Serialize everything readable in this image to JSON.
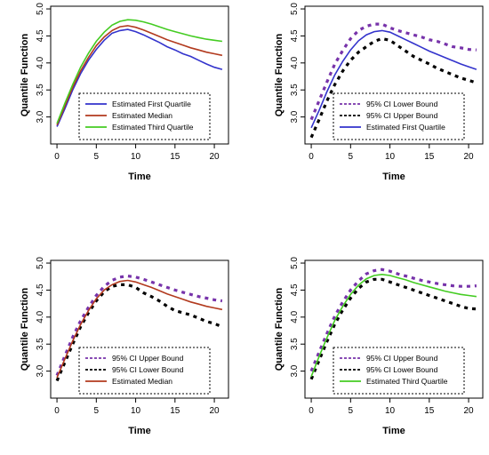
{
  "chart_data": [
    {
      "type": "line",
      "xlabel": "Time",
      "ylabel": "Quantile Function",
      "xlim": [
        -0.8,
        21.8
      ],
      "ylim": [
        2.5,
        5.05
      ],
      "x_ticks": [
        0,
        5,
        10,
        15,
        20
      ],
      "y_ticks": [
        3.0,
        3.5,
        4.0,
        4.5,
        5.0
      ],
      "legend_position": "bottom-right",
      "x": [
        0,
        1,
        2,
        3,
        4,
        5,
        6,
        7,
        8,
        9,
        10,
        11,
        12,
        13,
        14,
        15,
        16,
        17,
        18,
        19,
        20,
        21
      ],
      "series": [
        {
          "name": "Estimated First Quartile",
          "color": "#3333cc",
          "dash": "solid",
          "values": [
            2.82,
            3.15,
            3.5,
            3.8,
            4.05,
            4.25,
            4.42,
            4.55,
            4.6,
            4.62,
            4.58,
            4.52,
            4.45,
            4.38,
            4.3,
            4.24,
            4.17,
            4.12,
            4.05,
            3.98,
            3.92,
            3.88
          ]
        },
        {
          "name": "Estimated Median",
          "color": "#b23a1e",
          "dash": "solid",
          "values": [
            2.85,
            3.2,
            3.55,
            3.85,
            4.1,
            4.32,
            4.48,
            4.6,
            4.67,
            4.69,
            4.66,
            4.61,
            4.55,
            4.49,
            4.43,
            4.38,
            4.33,
            4.28,
            4.24,
            4.2,
            4.17,
            4.14
          ]
        },
        {
          "name": "Estimated Third Quartile",
          "color": "#44cc22",
          "dash": "solid",
          "values": [
            2.88,
            3.25,
            3.6,
            3.92,
            4.18,
            4.4,
            4.57,
            4.7,
            4.77,
            4.8,
            4.79,
            4.76,
            4.72,
            4.67,
            4.62,
            4.58,
            4.54,
            4.5,
            4.47,
            4.44,
            4.42,
            4.4
          ]
        }
      ]
    },
    {
      "type": "line",
      "xlabel": "Time",
      "ylabel": "Quantile Function",
      "xlim": [
        -0.8,
        21.8
      ],
      "ylim": [
        2.5,
        5.05
      ],
      "x_ticks": [
        0,
        5,
        10,
        15,
        20
      ],
      "y_ticks": [
        3.0,
        3.5,
        4.0,
        4.5,
        5.0
      ],
      "legend_position": "bottom-right",
      "x": [
        0,
        1,
        2,
        3,
        4,
        5,
        6,
        7,
        8,
        9,
        10,
        11,
        12,
        13,
        14,
        15,
        16,
        17,
        18,
        19,
        20,
        21
      ],
      "series": [
        {
          "name": "95% CI Lower Bound",
          "color": "#7733aa",
          "dash": "thick-dotted",
          "values": [
            2.95,
            3.3,
            3.65,
            3.98,
            4.23,
            4.45,
            4.6,
            4.68,
            4.72,
            4.72,
            4.65,
            4.6,
            4.56,
            4.52,
            4.48,
            4.43,
            4.4,
            4.35,
            4.3,
            4.28,
            4.25,
            4.24
          ]
        },
        {
          "name": "95% CI Upper Bound",
          "color": "#000000",
          "dash": "thick-dotted",
          "values": [
            2.62,
            2.95,
            3.3,
            3.6,
            3.85,
            4.05,
            4.2,
            4.3,
            4.4,
            4.45,
            4.42,
            4.32,
            4.22,
            4.12,
            4.05,
            3.98,
            3.9,
            3.84,
            3.78,
            3.72,
            3.68,
            3.63
          ]
        },
        {
          "name": "Estimated First Quartile",
          "color": "#3333cc",
          "dash": "solid",
          "values": [
            2.8,
            3.12,
            3.47,
            3.78,
            4.03,
            4.24,
            4.41,
            4.52,
            4.58,
            4.6,
            4.57,
            4.5,
            4.43,
            4.36,
            4.29,
            4.22,
            4.16,
            4.1,
            4.04,
            3.98,
            3.93,
            3.88
          ]
        }
      ]
    },
    {
      "type": "line",
      "xlabel": "Time",
      "ylabel": "Quantile Function",
      "xlim": [
        -0.8,
        21.8
      ],
      "ylim": [
        2.5,
        5.05
      ],
      "x_ticks": [
        0,
        5,
        10,
        15,
        20
      ],
      "y_ticks": [
        3.0,
        3.5,
        4.0,
        4.5,
        5.0
      ],
      "legend_position": "bottom-right",
      "x": [
        0,
        1,
        2,
        3,
        4,
        5,
        6,
        7,
        8,
        9,
        10,
        11,
        12,
        13,
        14,
        15,
        16,
        17,
        18,
        19,
        20,
        21
      ],
      "series": [
        {
          "name": "95% CI Upper Bound",
          "color": "#7733aa",
          "dash": "thick-dotted",
          "values": [
            2.92,
            3.28,
            3.63,
            3.93,
            4.18,
            4.4,
            4.57,
            4.68,
            4.74,
            4.76,
            4.74,
            4.7,
            4.65,
            4.6,
            4.55,
            4.5,
            4.46,
            4.42,
            4.38,
            4.35,
            4.32,
            4.3
          ]
        },
        {
          "name": "95% CI Lower Bound",
          "color": "#000000",
          "dash": "thick-dotted",
          "values": [
            2.82,
            3.16,
            3.5,
            3.82,
            4.08,
            4.3,
            4.47,
            4.57,
            4.6,
            4.6,
            4.55,
            4.45,
            4.38,
            4.3,
            4.2,
            4.12,
            4.08,
            4.04,
            3.98,
            3.92,
            3.88,
            3.82
          ]
        },
        {
          "name": "Estimated Median",
          "color": "#b23a1e",
          "dash": "solid",
          "values": [
            2.88,
            3.22,
            3.56,
            3.86,
            4.12,
            4.34,
            4.5,
            4.6,
            4.66,
            4.68,
            4.65,
            4.6,
            4.55,
            4.49,
            4.43,
            4.38,
            4.33,
            4.28,
            4.24,
            4.2,
            4.17,
            4.14
          ]
        }
      ]
    },
    {
      "type": "line",
      "xlabel": "Time",
      "ylabel": "Quantile Function",
      "xlim": [
        -0.8,
        21.8
      ],
      "ylim": [
        2.5,
        5.05
      ],
      "x_ticks": [
        0,
        5,
        10,
        15,
        20
      ],
      "y_ticks": [
        3.0,
        3.5,
        4.0,
        4.5,
        5.0
      ],
      "legend_position": "bottom-right",
      "x": [
        0,
        1,
        2,
        3,
        4,
        5,
        6,
        7,
        8,
        9,
        10,
        11,
        12,
        13,
        14,
        15,
        16,
        17,
        18,
        19,
        20,
        21
      ],
      "series": [
        {
          "name": "95% CI Upper Bound",
          "color": "#7733aa",
          "dash": "thick-dotted",
          "values": [
            3.0,
            3.35,
            3.7,
            4.02,
            4.28,
            4.5,
            4.67,
            4.8,
            4.86,
            4.88,
            4.85,
            4.8,
            4.76,
            4.72,
            4.68,
            4.65,
            4.62,
            4.6,
            4.58,
            4.57,
            4.57,
            4.58
          ]
        },
        {
          "name": "95% CI Lower Bound",
          "color": "#000000",
          "dash": "thick-dotted",
          "values": [
            2.85,
            3.2,
            3.55,
            3.87,
            4.13,
            4.35,
            4.53,
            4.65,
            4.7,
            4.7,
            4.65,
            4.6,
            4.55,
            4.5,
            4.45,
            4.4,
            4.35,
            4.3,
            4.25,
            4.2,
            4.16,
            4.15
          ]
        },
        {
          "name": "Estimated Third Quartile",
          "color": "#44cc22",
          "dash": "solid",
          "values": [
            2.9,
            3.27,
            3.62,
            3.94,
            4.2,
            4.42,
            4.59,
            4.71,
            4.77,
            4.79,
            4.77,
            4.73,
            4.69,
            4.64,
            4.6,
            4.56,
            4.52,
            4.48,
            4.45,
            4.42,
            4.4,
            4.38
          ]
        }
      ]
    }
  ]
}
